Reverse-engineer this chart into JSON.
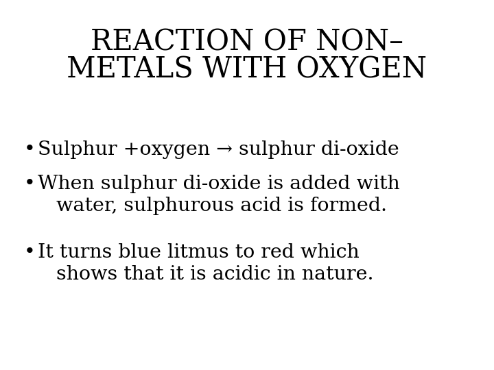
{
  "title_line1": "REACTION OF NON–",
  "title_line2": "METALS WITH OXYGEN",
  "bullet1": "Sulphur +oxygen → sulphur di-oxide",
  "bullet2_line1": "When sulphur di-oxide is added with",
  "bullet2_line2": "water, sulphurous acid is formed.",
  "bullet3_line1": "It turns blue litmus to red which",
  "bullet3_line2": "shows that it is acidic in nature.",
  "bg_color": "#ffffff",
  "text_color": "#000000",
  "title_fontsize": 30,
  "bullet_fontsize": 20.5
}
